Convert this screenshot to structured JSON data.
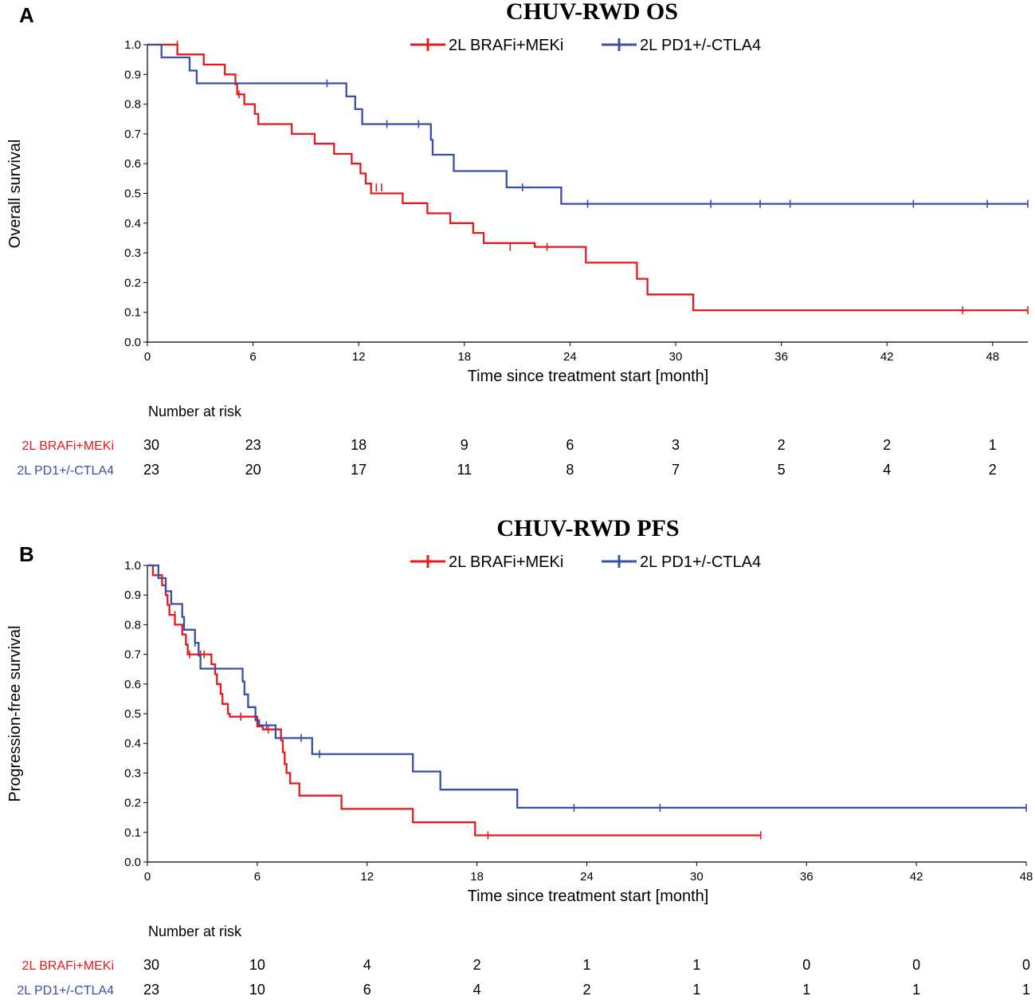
{
  "series_colors": {
    "brafi": "#e41a1c",
    "pd1": "#3a4fa8"
  },
  "chart_data": [
    {
      "type": "line",
      "panel": "A",
      "title": "CHUV-RWD OS",
      "xlabel": "Time since treatment start [month]",
      "ylabel": "Overall survival",
      "xlim": [
        0,
        50
      ],
      "ylim": [
        0,
        1
      ],
      "xticks": [
        "0",
        "6",
        "12",
        "18",
        "24",
        "30",
        "36",
        "42",
        "48"
      ],
      "yticks": [
        "0.0",
        "0.1",
        "0.2",
        "0.3",
        "0.4",
        "0.5",
        "0.6",
        "0.7",
        "0.8",
        "0.9",
        "1.0"
      ],
      "legend": [
        "2L BRAFi+MEKi",
        "2L PD1+/-CTLA4"
      ],
      "series": [
        {
          "name": "2L BRAFi+MEKi",
          "steps": [
            [
              0,
              1.0
            ],
            [
              1.7,
              0.967
            ],
            [
              3.2,
              0.933
            ],
            [
              4.4,
              0.9
            ],
            [
              5.0,
              0.867
            ],
            [
              5.1,
              0.833
            ],
            [
              5.5,
              0.8
            ],
            [
              6.1,
              0.767
            ],
            [
              6.3,
              0.733
            ],
            [
              8.2,
              0.7
            ],
            [
              9.5,
              0.667
            ],
            [
              10.6,
              0.633
            ],
            [
              11.6,
              0.6
            ],
            [
              12.1,
              0.567
            ],
            [
              12.4,
              0.533
            ],
            [
              12.7,
              0.5
            ],
            [
              14.5,
              0.467
            ],
            [
              15.9,
              0.433
            ],
            [
              17.2,
              0.4
            ],
            [
              18.5,
              0.367
            ],
            [
              19.1,
              0.333
            ],
            [
              20.2,
              0.333
            ],
            [
              22.0,
              0.32
            ],
            [
              24.9,
              0.267
            ],
            [
              27.8,
              0.213
            ],
            [
              28.4,
              0.16
            ],
            [
              31.0,
              0.107
            ],
            [
              50,
              0.107
            ]
          ],
          "censored": [
            [
              1.7,
              1.0
            ],
            [
              5.2,
              0.833
            ],
            [
              13.0,
              0.52
            ],
            [
              13.3,
              0.52
            ],
            [
              20.6,
              0.32
            ],
            [
              22.7,
              0.32
            ],
            [
              46.3,
              0.107
            ],
            [
              50.0,
              0.107
            ]
          ]
        },
        {
          "name": "2L PD1+/-CTLA4",
          "steps": [
            [
              0,
              1.0
            ],
            [
              0.8,
              0.957
            ],
            [
              2.4,
              0.913
            ],
            [
              2.8,
              0.87
            ],
            [
              11.3,
              0.826
            ],
            [
              11.8,
              0.783
            ],
            [
              12.2,
              0.733
            ],
            [
              16.1,
              0.68
            ],
            [
              16.2,
              0.63
            ],
            [
              17.4,
              0.575
            ],
            [
              20.4,
              0.52
            ],
            [
              23.5,
              0.465
            ],
            [
              50,
              0.465
            ]
          ],
          "censored": [
            [
              10.2,
              0.87
            ],
            [
              13.6,
              0.733
            ],
            [
              15.4,
              0.733
            ],
            [
              21.3,
              0.52
            ],
            [
              25.0,
              0.465
            ],
            [
              32.0,
              0.465
            ],
            [
              34.8,
              0.465
            ],
            [
              36.5,
              0.465
            ],
            [
              43.5,
              0.465
            ],
            [
              47.7,
              0.465
            ],
            [
              50.0,
              0.465
            ]
          ]
        }
      ],
      "risk_table": {
        "header": "Number at risk",
        "rows": [
          {
            "label": "2L BRAFi+MEKi",
            "counts": [
              "30",
              "23",
              "18",
              "9",
              "6",
              "3",
              "2",
              "2",
              "1"
            ]
          },
          {
            "label": "2L PD1+/-CTLA4",
            "counts": [
              "23",
              "20",
              "17",
              "11",
              "8",
              "7",
              "5",
              "4",
              "2"
            ]
          }
        ]
      }
    },
    {
      "type": "line",
      "panel": "B",
      "title": "CHUV-RWD PFS",
      "xlabel": "Time since treatment start [month]",
      "ylabel": "Progression-free survival",
      "xlim": [
        0,
        48
      ],
      "ylim": [
        0,
        1
      ],
      "xticks": [
        "0",
        "6",
        "12",
        "18",
        "24",
        "30",
        "36",
        "42",
        "48"
      ],
      "yticks": [
        "0.0",
        "0.1",
        "0.2",
        "0.3",
        "0.4",
        "0.5",
        "0.6",
        "0.7",
        "0.8",
        "0.9",
        "1.0"
      ],
      "legend": [
        "2L BRAFi+MEKi",
        "2L PD1+/-CTLA4"
      ],
      "series": [
        {
          "name": "2L BRAFi+MEKi",
          "steps": [
            [
              0,
              1.0
            ],
            [
              0.3,
              0.967
            ],
            [
              0.8,
              0.933
            ],
            [
              1.0,
              0.9
            ],
            [
              1.1,
              0.867
            ],
            [
              1.2,
              0.833
            ],
            [
              1.5,
              0.8
            ],
            [
              1.9,
              0.767
            ],
            [
              2.1,
              0.733
            ],
            [
              2.2,
              0.7
            ],
            [
              3.5,
              0.667
            ],
            [
              3.7,
              0.633
            ],
            [
              3.8,
              0.6
            ],
            [
              4.0,
              0.567
            ],
            [
              4.1,
              0.533
            ],
            [
              4.4,
              0.5
            ],
            [
              4.5,
              0.49
            ],
            [
              6.0,
              0.457
            ],
            [
              6.3,
              0.447
            ],
            [
              7.3,
              0.41
            ],
            [
              7.4,
              0.37
            ],
            [
              7.5,
              0.33
            ],
            [
              7.6,
              0.3
            ],
            [
              7.8,
              0.265
            ],
            [
              8.3,
              0.224
            ],
            [
              10.6,
              0.179
            ],
            [
              14.5,
              0.134
            ],
            [
              17.9,
              0.09
            ],
            [
              33.5,
              0.09
            ]
          ],
          "censored": [
            [
              1.5,
              0.833
            ],
            [
              2.3,
              0.7
            ],
            [
              2.9,
              0.7
            ],
            [
              3.1,
              0.7
            ],
            [
              5.1,
              0.49
            ],
            [
              6.6,
              0.447
            ],
            [
              18.6,
              0.09
            ],
            [
              33.5,
              0.09
            ]
          ]
        },
        {
          "name": "2L PD1+/-CTLA4",
          "steps": [
            [
              0,
              1.0
            ],
            [
              0.6,
              0.957
            ],
            [
              1.0,
              0.913
            ],
            [
              1.3,
              0.87
            ],
            [
              1.9,
              0.826
            ],
            [
              2.0,
              0.783
            ],
            [
              2.6,
              0.739
            ],
            [
              2.8,
              0.696
            ],
            [
              2.9,
              0.652
            ],
            [
              5.2,
              0.609
            ],
            [
              5.3,
              0.565
            ],
            [
              5.5,
              0.522
            ],
            [
              5.9,
              0.478
            ],
            [
              6.1,
              0.461
            ],
            [
              7.0,
              0.418
            ],
            [
              9.0,
              0.364
            ],
            [
              14.5,
              0.305
            ],
            [
              16.0,
              0.244
            ],
            [
              20.2,
              0.183
            ],
            [
              48,
              0.183
            ]
          ],
          "censored": [
            [
              2.6,
              0.739
            ],
            [
              6.5,
              0.461
            ],
            [
              8.4,
              0.418
            ],
            [
              9.4,
              0.364
            ],
            [
              23.3,
              0.183
            ],
            [
              28.0,
              0.183
            ],
            [
              48.0,
              0.183
            ]
          ]
        }
      ],
      "risk_table": {
        "header": "Number at risk",
        "rows": [
          {
            "label": "2L BRAFi+MEKi",
            "counts": [
              "30",
              "10",
              "4",
              "2",
              "1",
              "1",
              "0",
              "0",
              "0"
            ]
          },
          {
            "label": "2L PD1+/-CTLA4",
            "counts": [
              "23",
              "10",
              "6",
              "4",
              "2",
              "1",
              "1",
              "1",
              "1"
            ]
          }
        ]
      }
    }
  ]
}
